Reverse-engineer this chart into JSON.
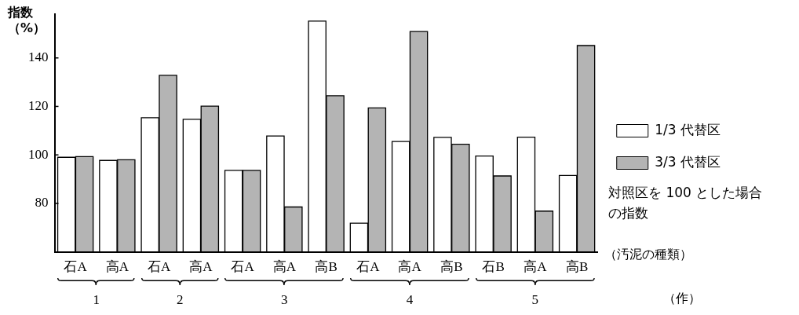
{
  "chart_data": {
    "type": "bar",
    "xlabel": "（汚泥の種類）",
    "ylabel": "指数（%）",
    "categories": [
      "石A",
      "高A",
      "石A",
      "高A",
      "石A",
      "高A",
      "高B",
      "石A",
      "高A",
      "高B",
      "石B",
      "高A",
      "高B"
    ],
    "series": [
      {
        "name": "1/3 代替区",
        "color": "#ffffff",
        "values": [
          99.0,
          97.7,
          115.3,
          114.7,
          93.6,
          107.8,
          155.2,
          71.8,
          105.5,
          107.2,
          99.5,
          107.3,
          91.5
        ]
      },
      {
        "name": "3/3 代替区",
        "color": "#b4b4b4",
        "values": [
          99.3,
          98.0,
          132.8,
          120.1,
          93.6,
          78.5,
          124.4,
          119.4,
          150.9,
          104.4,
          91.3,
          76.8,
          145.1
        ]
      }
    ],
    "ylim": [
      60,
      158
    ],
    "yticks": [
      80,
      100,
      120,
      140
    ],
    "grid": false,
    "legend": "right",
    "annotations": [
      {
        "text": "1"
      },
      {
        "text": "2"
      },
      {
        "text": "3"
      },
      {
        "text": "4"
      },
      {
        "text": "5"
      },
      "対照区を 100 とした場合の指数",
      "（作）"
    ]
  }
}
